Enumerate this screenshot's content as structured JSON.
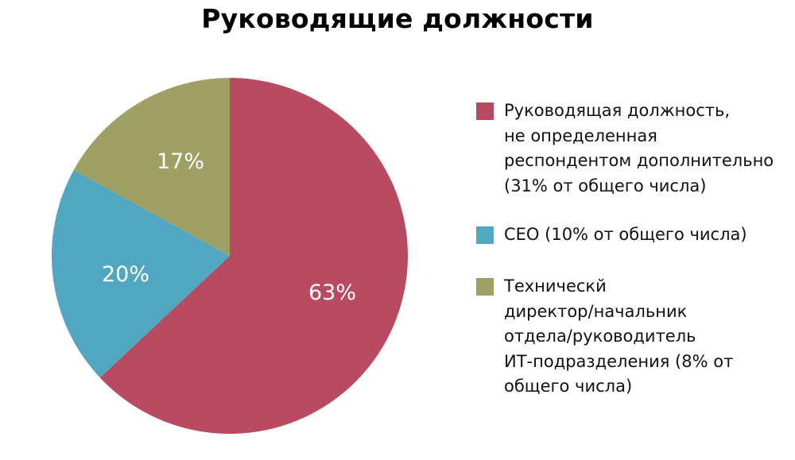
{
  "title": "Руководящие должности",
  "chart_data": {
    "type": "pie",
    "title": "Руководящие должности",
    "categories": [
      "Руководящая должность, не определенная респондентом дополнительно (31% от общего числа)",
      "CEO (10% от общего числа)",
      "Техническй директор/начальник отдела/руководитель ИТ-подразделения (8% от общего числа)"
    ],
    "values": [
      63,
      20,
      17
    ],
    "value_labels": [
      "63%",
      "20%",
      "17%"
    ],
    "colors": [
      "#B84B62",
      "#52A7C0",
      "#9EA064"
    ],
    "start_angle": "12 o'clock, clockwise",
    "legend_position": "right"
  },
  "slices": [
    {
      "label": "63%",
      "color": "#B84B62"
    },
    {
      "label": "20%",
      "color": "#52A7C0"
    },
    {
      "label": "17%",
      "color": "#9EA064"
    }
  ],
  "legend": {
    "items": [
      {
        "color": "#B84B62",
        "lines": [
          "Руководящая должность,",
          "не определенная",
          "респондентом дополнительно",
          "(31% от общего числа)"
        ]
      },
      {
        "color": "#52A7C0",
        "lines": [
          "CEO (10% от общего числа)"
        ]
      },
      {
        "color": "#9EA064",
        "lines": [
          "Техническй",
          "директор/начальник",
          "отдела/руководитель",
          "ИТ-подразделения (8% от",
          "общего числа)"
        ]
      }
    ]
  }
}
